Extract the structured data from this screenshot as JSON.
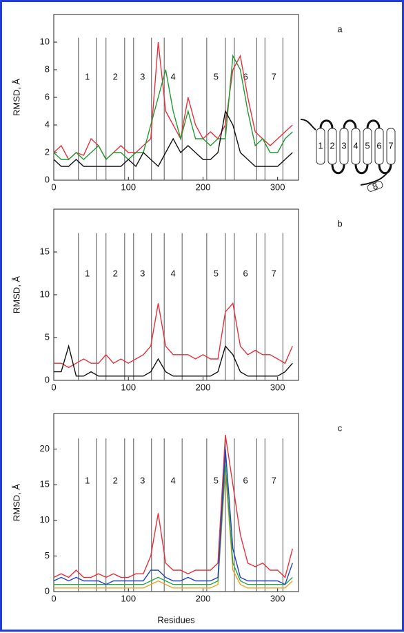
{
  "chart_data": [
    {
      "type": "line",
      "panel": "a",
      "y_label": "RMSD, Å",
      "xlim": [
        0,
        328
      ],
      "ylim": [
        0,
        12
      ],
      "xticks": [
        0,
        100,
        200,
        300
      ],
      "yticks": [
        0,
        2,
        4,
        6,
        8,
        10
      ],
      "boundaries": [
        33,
        57,
        70,
        95,
        107,
        131,
        148,
        172,
        205,
        230,
        242,
        272,
        283,
        307
      ],
      "helix_labels": [
        "1",
        "2",
        "3",
        "4",
        "5",
        "6",
        "7"
      ],
      "x": [
        0,
        10,
        20,
        30,
        40,
        50,
        60,
        70,
        80,
        90,
        100,
        110,
        120,
        130,
        140,
        150,
        160,
        170,
        180,
        190,
        200,
        210,
        220,
        230,
        240,
        250,
        260,
        270,
        280,
        290,
        300,
        310,
        320
      ],
      "series": [
        {
          "color": "#e8303a",
          "values": [
            2,
            2.5,
            1.5,
            2,
            1.8,
            3,
            2.5,
            1.5,
            2,
            2.5,
            2,
            2,
            2.5,
            3,
            10,
            5,
            4,
            3,
            6,
            4,
            3,
            3.5,
            3,
            4,
            8,
            9,
            6,
            3.5,
            3,
            2.5,
            3,
            3.5,
            4
          ]
        },
        {
          "color": "#1f9a2e",
          "values": [
            2,
            1.5,
            1.5,
            2,
            1.5,
            2,
            2.5,
            1.5,
            2,
            2,
            1.5,
            2,
            2,
            4,
            6,
            8,
            5,
            3,
            5,
            3,
            3,
            2.5,
            3,
            3,
            9,
            8,
            5,
            2.5,
            3,
            2,
            2,
            3,
            3.5
          ]
        },
        {
          "color": "#111111",
          "values": [
            1.5,
            1,
            1,
            1.5,
            1,
            1,
            1,
            1,
            1,
            1,
            1.5,
            1,
            2,
            1.5,
            1,
            2,
            3,
            2,
            2.5,
            2,
            1.5,
            1.5,
            2,
            5,
            4,
            2,
            1.5,
            1,
            1,
            1,
            1,
            1.5,
            2
          ]
        }
      ]
    },
    {
      "type": "line",
      "panel": "b",
      "y_label": "RMSD, Å",
      "xlim": [
        0,
        328
      ],
      "ylim": [
        0,
        20
      ],
      "xticks": [
        0,
        100,
        200,
        300
      ],
      "yticks": [
        0,
        5,
        10,
        15
      ],
      "boundaries": [
        33,
        57,
        70,
        95,
        107,
        131,
        148,
        172,
        205,
        230,
        242,
        272,
        283,
        307
      ],
      "helix_labels": [
        "1",
        "2",
        "3",
        "4",
        "5",
        "6",
        "7"
      ],
      "x": [
        0,
        10,
        20,
        30,
        40,
        50,
        60,
        70,
        80,
        90,
        100,
        110,
        120,
        130,
        140,
        150,
        160,
        170,
        180,
        190,
        200,
        210,
        220,
        230,
        240,
        250,
        260,
        270,
        280,
        290,
        300,
        310,
        320
      ],
      "series": [
        {
          "color": "#e8303a",
          "values": [
            2,
            2,
            1.5,
            2,
            2.5,
            2,
            2,
            3,
            2,
            2.5,
            2,
            2.5,
            3,
            4,
            9,
            4,
            3,
            3,
            3,
            2.5,
            3,
            2.5,
            2.5,
            8,
            9,
            4,
            3,
            3.5,
            3,
            3,
            2.5,
            2,
            4
          ]
        },
        {
          "color": "#111111",
          "values": [
            1,
            1,
            4,
            0.5,
            0.5,
            1,
            0.5,
            0.5,
            0.5,
            0.5,
            0.5,
            0.5,
            0.5,
            1,
            2.5,
            1,
            0.5,
            0.5,
            0.5,
            0.5,
            0.5,
            0.5,
            1,
            4,
            3,
            1,
            0.5,
            0.5,
            0.5,
            0.5,
            0.5,
            1,
            2
          ]
        }
      ]
    },
    {
      "type": "line",
      "panel": "c",
      "y_label": "RMSD, Å",
      "x_label": "Residues",
      "xlim": [
        0,
        328
      ],
      "ylim": [
        0,
        25
      ],
      "xticks": [
        0,
        100,
        200,
        300
      ],
      "yticks": [
        0,
        5,
        10,
        15,
        20
      ],
      "boundaries": [
        33,
        57,
        70,
        95,
        107,
        131,
        148,
        172,
        205,
        230,
        242,
        272,
        283,
        307
      ],
      "helix_labels": [
        "1",
        "2",
        "3",
        "4",
        "5",
        "6",
        "7"
      ],
      "x": [
        0,
        10,
        20,
        30,
        40,
        50,
        60,
        70,
        80,
        90,
        100,
        110,
        120,
        130,
        140,
        150,
        160,
        170,
        180,
        190,
        200,
        210,
        220,
        230,
        240,
        250,
        260,
        270,
        280,
        290,
        300,
        310,
        320
      ],
      "series": [
        {
          "color": "#f0a020",
          "values": [
            0.5,
            0.5,
            0.5,
            0.5,
            0.5,
            0.5,
            0.5,
            0.5,
            0.5,
            0.5,
            0.5,
            0.5,
            0.5,
            1,
            1.5,
            1,
            0.5,
            0.5,
            0.5,
            0.5,
            0.5,
            0.5,
            1,
            17,
            3,
            1,
            0.5,
            0.5,
            0.5,
            0.5,
            0.5,
            0.5,
            1.5
          ]
        },
        {
          "color": "#22a845",
          "values": [
            1,
            1,
            1,
            1,
            1,
            1,
            1,
            1,
            1,
            1,
            1,
            1,
            1,
            1.5,
            2,
            1.5,
            1,
            1,
            1,
            1,
            1,
            1,
            1.5,
            18,
            4,
            1.5,
            1,
            1,
            1,
            1,
            1,
            1,
            2
          ]
        },
        {
          "color": "#e8303a",
          "values": [
            2,
            2.5,
            2,
            3,
            2,
            2,
            2.5,
            2,
            2.5,
            2,
            2,
            2.5,
            2.5,
            5,
            11,
            4,
            3,
            3,
            2.5,
            3,
            3,
            3,
            4,
            22,
            15,
            8,
            4,
            3.5,
            4,
            3,
            3,
            2,
            6
          ]
        },
        {
          "color": "#2040c8",
          "values": [
            1.5,
            2,
            1.5,
            2,
            1.5,
            1.5,
            1.5,
            1,
            1.5,
            1.5,
            1.5,
            1.5,
            1.5,
            3,
            3,
            2,
            1.5,
            1.5,
            2,
            1.5,
            1.5,
            1.5,
            2,
            20,
            6,
            2,
            1.5,
            1.5,
            1.5,
            1.5,
            1.5,
            1,
            4
          ]
        }
      ]
    }
  ],
  "diagram": {
    "helices": [
      "1",
      "2",
      "3",
      "4",
      "5",
      "6",
      "7"
    ],
    "tail": "8"
  }
}
